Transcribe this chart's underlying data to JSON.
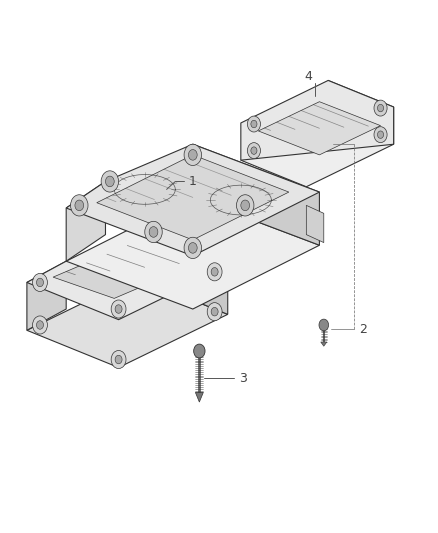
{
  "bg_color": "#ffffff",
  "line_color": "#333333",
  "label_color": "#444444",
  "figsize": [
    4.38,
    5.33
  ],
  "dpi": 100
}
